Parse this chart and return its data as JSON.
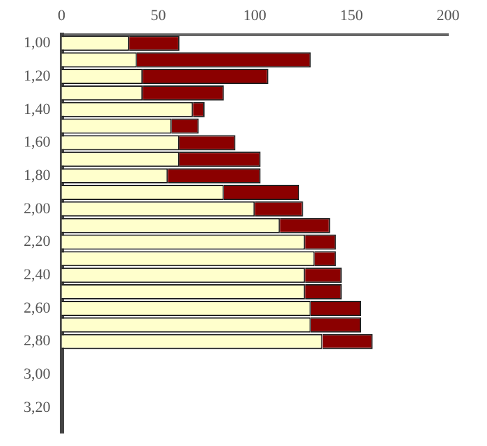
{
  "chart_data": {
    "type": "bar",
    "orientation": "horizontal",
    "stacked": true,
    "categories": [
      "1,00",
      null,
      "1,20",
      null,
      "1,40",
      null,
      "1,60",
      null,
      "1,80",
      null,
      "2,00",
      null,
      "2,20",
      null,
      "2,40",
      null,
      "2,60",
      null,
      "2,80",
      null,
      "3,00",
      null,
      "3,20",
      null
    ],
    "series": [
      {
        "color": "#ffffcc",
        "values": [
          35,
          39,
          42,
          42,
          68,
          57,
          61,
          61,
          55,
          84,
          100,
          113,
          126,
          131,
          126,
          126,
          129,
          129,
          135,
          null,
          null,
          null,
          null,
          null
        ]
      },
      {
        "color": "#8b0000",
        "values": [
          26,
          90,
          65,
          42,
          6,
          14,
          29,
          42,
          48,
          39,
          25,
          26,
          16,
          11,
          19,
          19,
          26,
          26,
          26,
          null,
          null,
          null,
          null,
          null
        ]
      }
    ],
    "xlim": [
      0,
      200
    ],
    "xticks": [
      0,
      50,
      100,
      150,
      200
    ],
    "grid": false,
    "legend": false
  }
}
